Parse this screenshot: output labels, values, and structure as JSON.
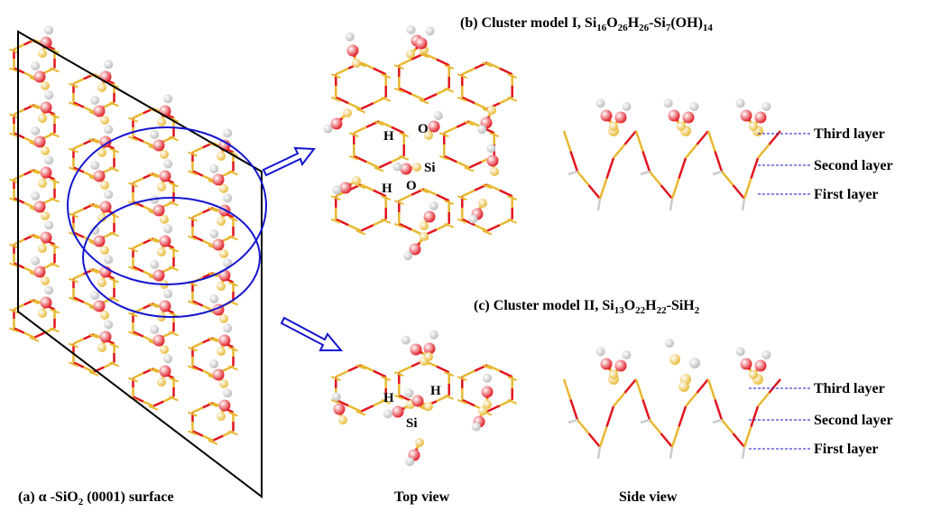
{
  "caption_a": {
    "parts": [
      "(a) α -SiO",
      "2",
      " (0001) surface"
    ]
  },
  "caption_b": {
    "parts": [
      "(b) Cluster model I, Si",
      "16",
      "O",
      "26",
      "H",
      "26",
      "-Si",
      "7",
      "(OH)",
      "14"
    ]
  },
  "caption_c": {
    "parts": [
      "(c) Cluster model II, Si",
      "13",
      "O",
      "22",
      "H",
      "22",
      "-SiH",
      "2"
    ]
  },
  "top_view": "Top view",
  "side_view": "Side view",
  "layers_b": [
    "Third layer",
    "Second layer",
    "First layer"
  ],
  "layers_c": [
    "Third layer",
    "Second layer",
    "First layer"
  ],
  "atoms_b": [
    "H",
    "O",
    "Si",
    "H",
    "O"
  ],
  "atoms_c": [
    "H",
    "H",
    "Si"
  ]
}
